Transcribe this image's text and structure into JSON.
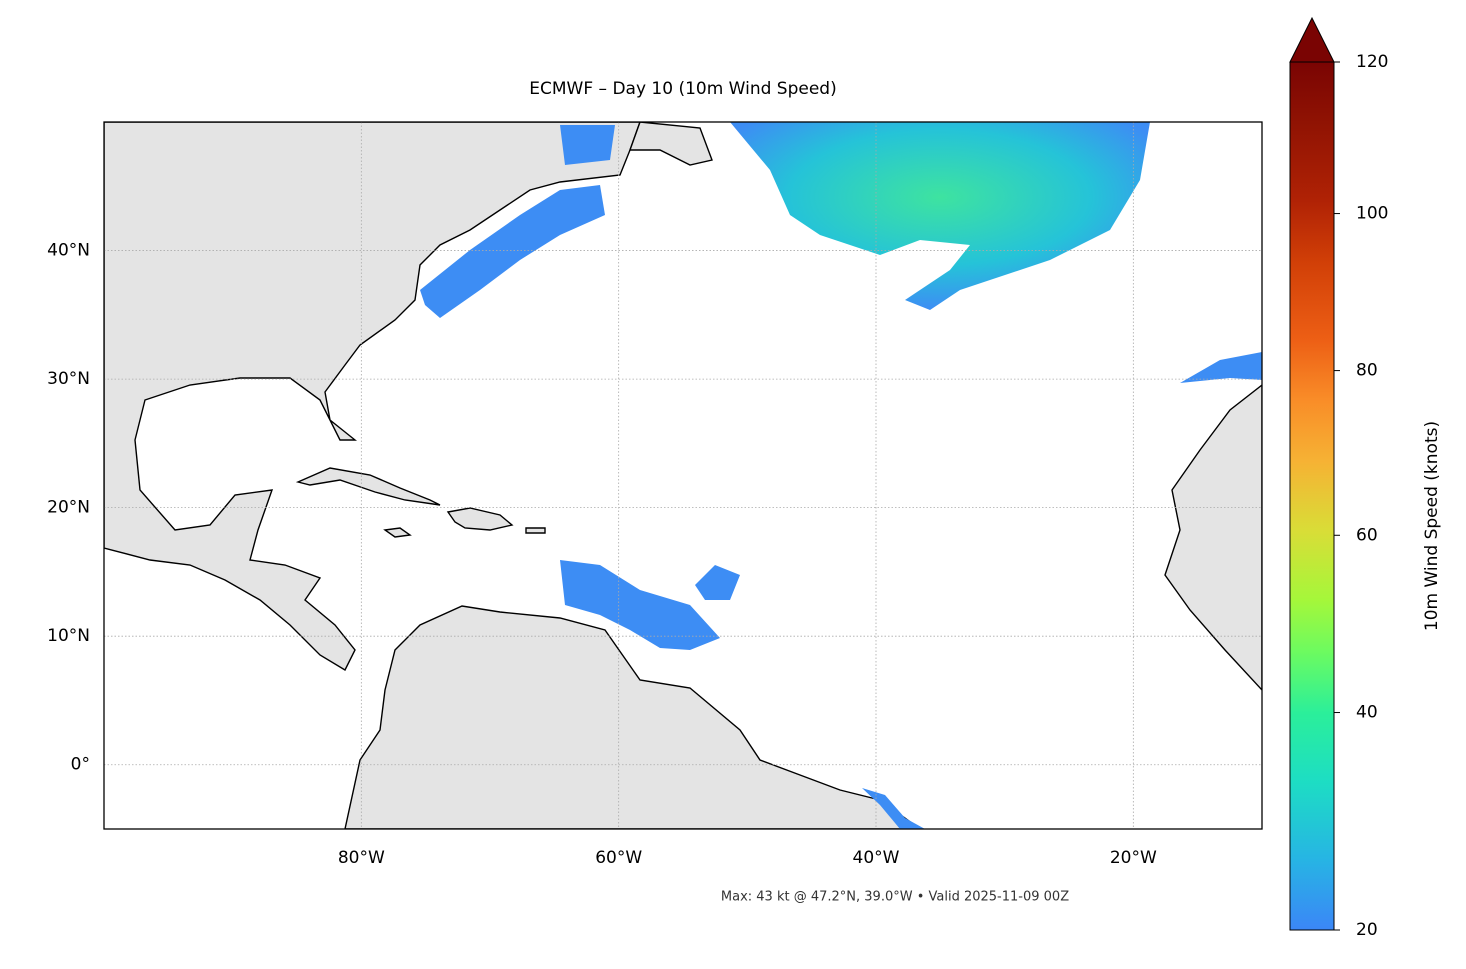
{
  "title": "ECMWF – Day 10 (10m Wind Speed)",
  "caption": "Max: 43 kt @ 47.2°N, 39.0°W • Valid 2025-11-09 00Z",
  "map": {
    "xlim": [
      -100,
      -10
    ],
    "ylim": [
      -5,
      50
    ],
    "xticks": [
      {
        "value": -80,
        "label": "80°W"
      },
      {
        "value": -60,
        "label": "60°W"
      },
      {
        "value": -40,
        "label": "40°W"
      },
      {
        "value": -20,
        "label": "20°W"
      }
    ],
    "yticks": [
      {
        "value": 0,
        "label": "0°"
      },
      {
        "value": 10,
        "label": "10°N"
      },
      {
        "value": 20,
        "label": "20°N"
      },
      {
        "value": 30,
        "label": "30°N"
      },
      {
        "value": 40,
        "label": "40°N"
      }
    ],
    "grid": true
  },
  "colorbar": {
    "label": "10m Wind Speed (knots)",
    "lim": [
      20,
      120
    ],
    "ticks": [
      20,
      40,
      60,
      80,
      100,
      120
    ],
    "extend": "max"
  }
}
